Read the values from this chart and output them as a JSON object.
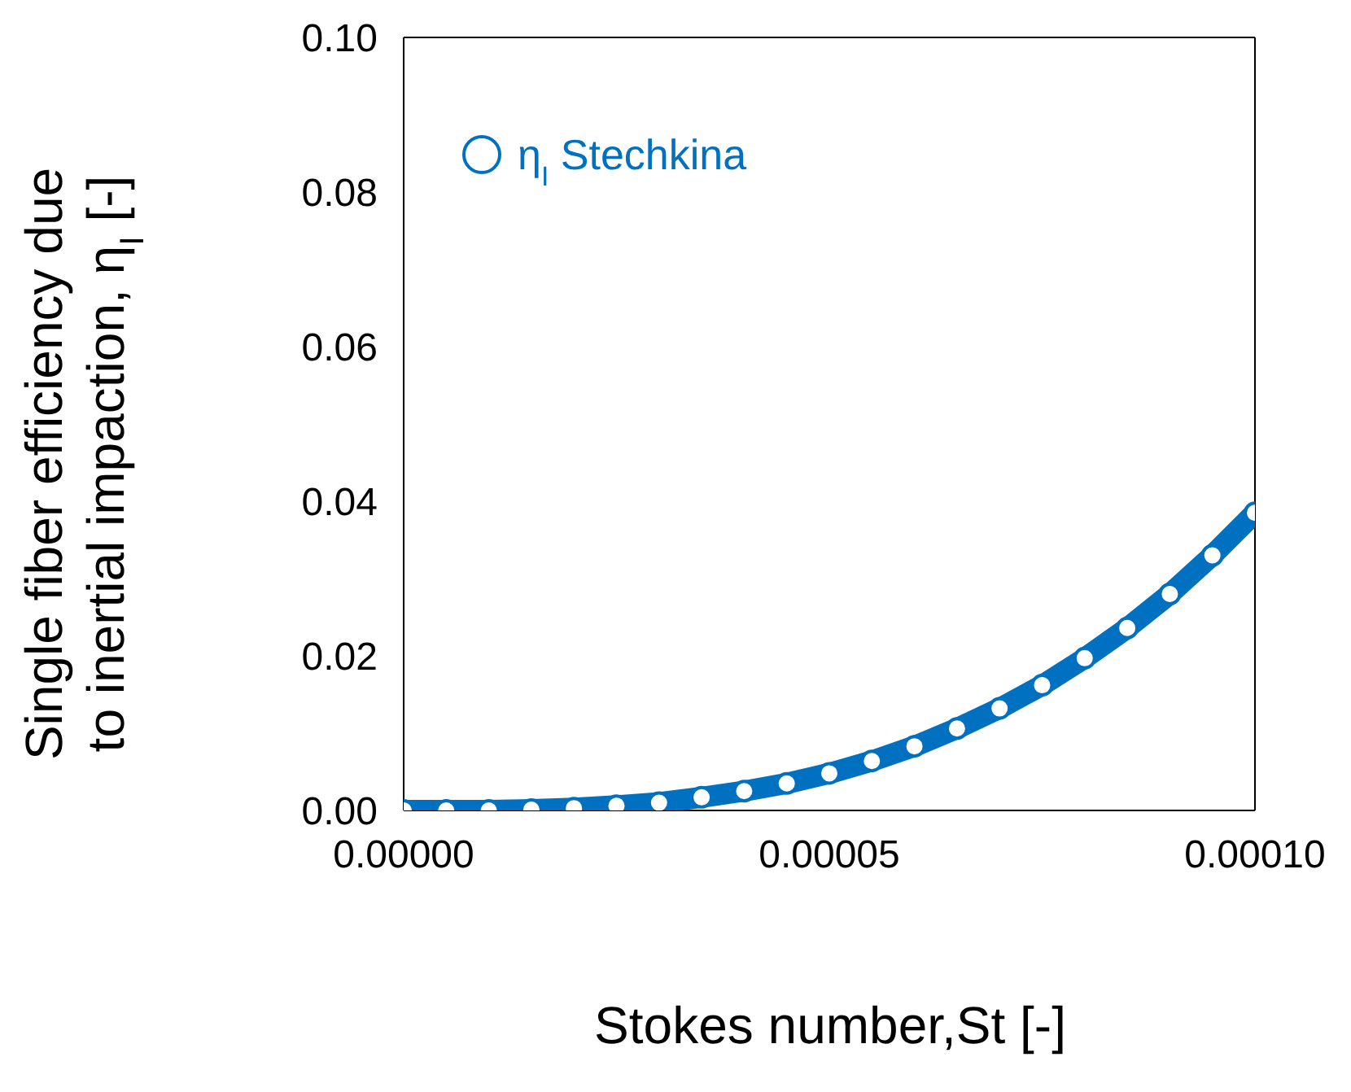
{
  "chart_data": {
    "type": "scatter",
    "xlabel": "Stokes number,St [-]",
    "ylabel": "Single fiber efficiency due\nto inertial impaction, η$_{I}$ [-]",
    "x": [
      0,
      5e-06,
      1e-05,
      1.5e-05,
      2e-05,
      2.5e-05,
      3e-05,
      3.5e-05,
      4e-05,
      4.5e-05,
      5e-05,
      5.5e-05,
      6e-05,
      6.5e-05,
      7e-05,
      7.5e-05,
      8e-05,
      8.5e-05,
      9e-05,
      9.5e-05,
      0.0001
    ],
    "series": [
      {
        "name": "η$_{I}$ Stechkina",
        "type": "line",
        "color": "#0070c0",
        "values": [
          0,
          0.0,
          0.0,
          0.0001,
          0.0003,
          0.0006,
          0.001,
          0.0017,
          0.0025,
          0.0035,
          0.0048,
          0.0064,
          0.0083,
          0.0106,
          0.0132,
          0.0162,
          0.0197,
          0.0236,
          0.028,
          0.033,
          0.0385
        ]
      }
    ],
    "xlim": [
      0,
      0.0001
    ],
    "xticks": [
      {
        "value": 0,
        "label": "0.00000"
      },
      {
        "value": 5e-05,
        "label": "0.00005"
      },
      {
        "value": 0.0001,
        "label": "0.00010"
      }
    ],
    "ylim": [
      0,
      0.1
    ],
    "yticks": [
      {
        "value": 0,
        "label": "0.00"
      },
      {
        "value": 0.02,
        "label": "0.02"
      },
      {
        "value": 0.04,
        "label": "0.04"
      },
      {
        "value": 0.06,
        "label": "0.06"
      },
      {
        "value": 0.08,
        "label": "0.08"
      },
      {
        "value": 0.1,
        "label": "0.10"
      }
    ],
    "legend": "top left",
    "marker": "circle"
  }
}
